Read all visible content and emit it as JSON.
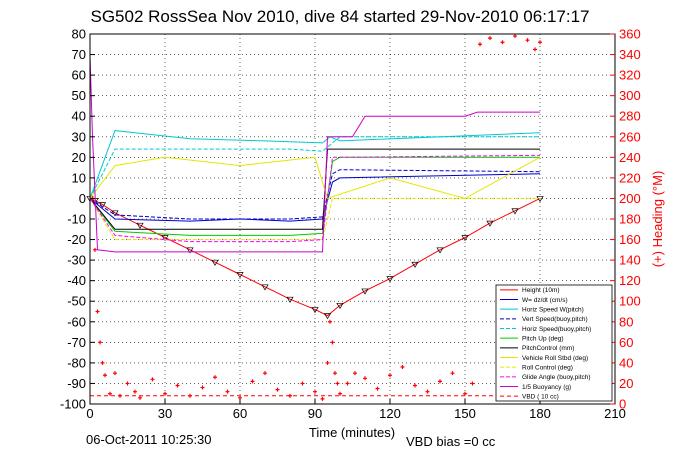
{
  "figure": {
    "title": "SG502 RossSea Nov 2010, dive 84 started 29-Nov-2010 06:17:17",
    "timestamp": "06-Oct-2011 10:25:30",
    "vbd_bias": "VBD bias =0 cc"
  },
  "colors": {
    "height": "#ff0000",
    "w": "#0000cc",
    "horiz": "#00c8d0",
    "pitch": "#00cc00",
    "roll": "#e6e600",
    "glide": "#ff00ff",
    "buoy": "#cc00cc",
    "vbd": "#ff0000",
    "axis": "#000000",
    "heading": "#ff0000"
  },
  "chart_data": {
    "type": "line",
    "title": "SG502 RossSea Nov 2010, dive 84 started 29-Nov-2010 06:17:17",
    "xlabel": "Time (minutes)",
    "ylabel": "",
    "y2label": "(+) Heading (°M)",
    "xlim": [
      0,
      210
    ],
    "ylim": [
      -100,
      80
    ],
    "y2lim": [
      0,
      360
    ],
    "grid": true,
    "legend_position": "bottom-right",
    "x_ticks": [
      0,
      30,
      60,
      90,
      120,
      150,
      180,
      210
    ],
    "y_ticks": [
      -100,
      -90,
      -80,
      -70,
      -60,
      -50,
      -40,
      -30,
      -20,
      -10,
      0,
      10,
      20,
      30,
      40,
      50,
      60,
      70,
      80
    ],
    "y2_ticks": [
      0,
      20,
      40,
      60,
      80,
      100,
      120,
      140,
      160,
      180,
      200,
      220,
      240,
      260,
      280,
      300,
      320,
      340,
      360
    ],
    "legend": [
      "Height (10m)",
      "W= dz/dt (cm/s)",
      "Horiz Speed W(pitch)",
      "Vert Speed(buoy,pitch)",
      "Horiz Speed(buoy,pitch)",
      "Pitch Up (deg)",
      "PitchControl (mm)",
      "Vehicle Roll Stbd (deg)",
      "Roll Control (deg)",
      "Glide Angle (buoy,pitch)",
      "1/5 Buoyancy (g)",
      "VBD ( 10 cc)"
    ],
    "series": [
      {
        "name": "Height (10m)",
        "x": [
          0,
          2,
          5,
          10,
          20,
          30,
          40,
          50,
          60,
          70,
          80,
          90,
          95,
          100,
          110,
          120,
          130,
          140,
          150,
          160,
          170,
          180
        ],
        "y": [
          0,
          -1,
          -3,
          -7,
          -13,
          -19,
          -25,
          -31,
          -37,
          -43,
          -49,
          -54,
          -57,
          -52,
          -45,
          -39,
          -32,
          -25,
          -19,
          -12,
          -6,
          0
        ]
      },
      {
        "name": "W= dz/dt (cm/s)",
        "x": [
          0,
          5,
          10,
          40,
          60,
          80,
          93,
          97,
          100,
          180
        ],
        "y": [
          0,
          -5,
          -10,
          -11,
          -10,
          -11,
          -10,
          8,
          10,
          12
        ]
      },
      {
        "name": "Horiz Speed W(pitch)",
        "x": [
          0,
          10,
          40,
          70,
          93,
          96,
          100,
          180
        ],
        "y": [
          0,
          33,
          29,
          28,
          27,
          30,
          28,
          32
        ]
      },
      {
        "name": "Vert Speed(buoy,pitch)",
        "x": [
          0,
          10,
          40,
          80,
          93,
          97,
          100,
          180
        ],
        "y": [
          0,
          -8,
          -10,
          -10,
          -9,
          12,
          14,
          13
        ]
      },
      {
        "name": "Horiz Speed(buoy,pitch)",
        "x": [
          0,
          10,
          40,
          80,
          93,
          97,
          100,
          180
        ],
        "y": [
          0,
          24,
          24,
          24,
          23,
          27,
          30,
          30
        ]
      },
      {
        "name": "Pitch Up (deg)",
        "x": [
          0,
          10,
          40,
          80,
          93,
          97,
          100,
          180
        ],
        "y": [
          0,
          -16,
          -18,
          -18,
          -17,
          18,
          20,
          20
        ]
      },
      {
        "name": "PitchControl (mm)",
        "x": [
          0,
          10,
          93,
          95,
          180
        ],
        "y": [
          0,
          -15,
          -15,
          24,
          24
        ]
      },
      {
        "name": "Vehicle Roll Stbd (deg)",
        "x": [
          0,
          10,
          30,
          60,
          90,
          95,
          120,
          150,
          180
        ],
        "y": [
          0,
          16,
          20,
          16,
          20,
          0,
          10,
          0,
          20
        ]
      },
      {
        "name": "Roll Control (deg)",
        "x": [
          0,
          10,
          93,
          97,
          180
        ],
        "y": [
          0,
          -20,
          -20,
          0,
          0
        ]
      },
      {
        "name": "Glide Angle (buoy,pitch)",
        "x": [
          0,
          10,
          40,
          80,
          93,
          97,
          100,
          180
        ],
        "y": [
          0,
          -18,
          -21,
          -21,
          -20,
          20,
          20,
          21
        ]
      },
      {
        "name": "1/5 Buoyancy (g)",
        "x": [
          0,
          1,
          3,
          10,
          93,
          95,
          105,
          110,
          150,
          155,
          180
        ],
        "y": [
          70,
          30,
          -25,
          -26,
          -26,
          30,
          30,
          40,
          40,
          42,
          42
        ]
      },
      {
        "name": "VBD ( 10 cc)",
        "x": [
          0,
          180
        ],
        "y": [
          -96,
          -96
        ]
      }
    ],
    "heading": {
      "name": "(+) Heading (°M)",
      "x": [
        1,
        2,
        3,
        4,
        5,
        6,
        8,
        10,
        12,
        15,
        18,
        20,
        25,
        30,
        35,
        40,
        45,
        50,
        55,
        60,
        65,
        70,
        75,
        80,
        85,
        90,
        93,
        95,
        96,
        97,
        98,
        99,
        100,
        103,
        106,
        110,
        115,
        120,
        125,
        130,
        135,
        140,
        145,
        150,
        153,
        156,
        160,
        165,
        170,
        175,
        178,
        180
      ],
      "y": [
        200,
        150,
        90,
        60,
        40,
        28,
        10,
        30,
        8,
        20,
        12,
        6,
        24,
        10,
        18,
        8,
        16,
        26,
        12,
        6,
        22,
        30,
        14,
        8,
        20,
        12,
        5,
        40,
        80,
        60,
        30,
        20,
        10,
        20,
        30,
        25,
        15,
        28,
        36,
        18,
        12,
        22,
        30,
        10,
        20,
        350,
        356,
        352,
        358,
        354,
        345,
        352
      ]
    }
  }
}
